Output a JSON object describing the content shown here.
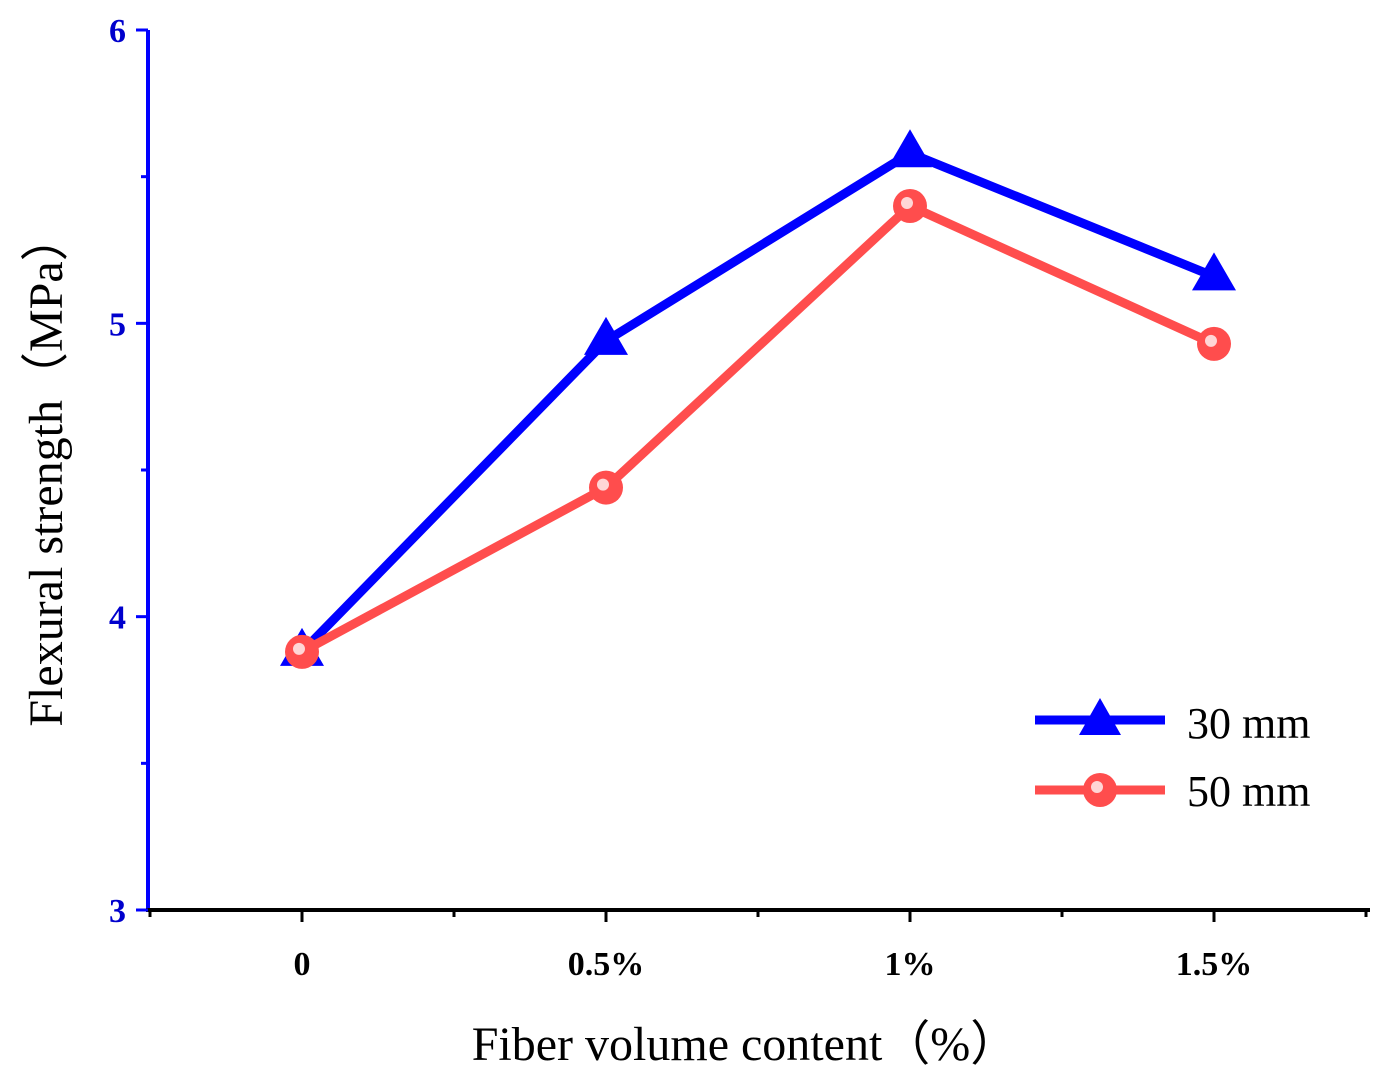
{
  "chart_data": {
    "type": "line",
    "categories": [
      "0",
      "0.5%",
      "1%",
      "1.5%"
    ],
    "series": [
      {
        "name": "30 mm",
        "values": [
          3.88,
          4.94,
          5.58,
          5.16
        ],
        "color": "#0000ff",
        "marker": "triangle"
      },
      {
        "name": "50 mm",
        "values": [
          3.88,
          4.44,
          5.4,
          4.93
        ],
        "color": "#ff4d4d",
        "marker": "circle"
      }
    ],
    "xlabel": "Fiber volume content（%）",
    "ylabel": "Flexural strength（MPa）",
    "ylim": [
      3,
      6
    ],
    "yticks": [
      "3",
      "4",
      "5",
      "6"
    ],
    "ytick_color": "#0000cd",
    "axis_color": "#0000ff",
    "legend_position": "bottom-right"
  }
}
